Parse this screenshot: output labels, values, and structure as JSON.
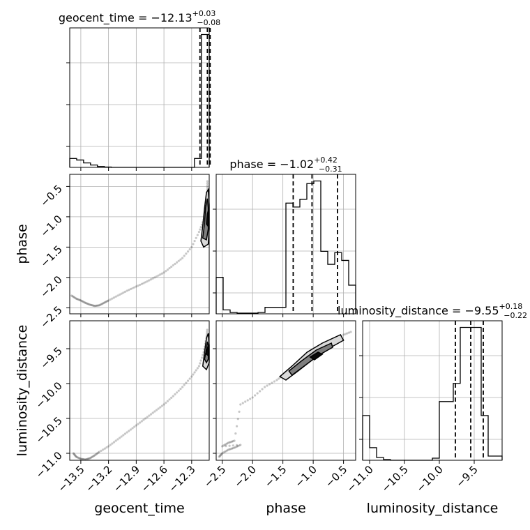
{
  "chart_data": {
    "type": "corner",
    "parameters": [
      {
        "name": "geocent_time",
        "label": "geocent_time",
        "title": {
          "prefix": "geocent_time = ",
          "median": "−12.13",
          "plus": "+0.03",
          "minus": "−0.08"
        },
        "range": [
          -13.62,
          -12.11
        ],
        "ticks": [
          -13.5,
          -13.2,
          -12.9,
          -12.6,
          -12.3
        ],
        "tick_labels": [
          "−13.5",
          "−13.2",
          "−12.9",
          "−12.6",
          "−12.3"
        ],
        "quantiles": [
          -12.21,
          -12.13,
          -12.1
        ],
        "hist": {
          "edges": [
            -13.62,
            -13.545,
            -13.47,
            -13.395,
            -13.32,
            -13.245,
            -13.17,
            -13.095,
            -13.02,
            -12.945,
            -12.87,
            -12.795,
            -12.72,
            -12.645,
            -12.57,
            -12.495,
            -12.42,
            -12.345,
            -12.27,
            -12.195,
            -12.11
          ],
          "counts": [
            0.03,
            0.025,
            0.015,
            0.008,
            0.003,
            0.001,
            0,
            0,
            0,
            0,
            0,
            0,
            0,
            0,
            0,
            0,
            0,
            0,
            0.03,
            0.45
          ]
        }
      },
      {
        "name": "phase",
        "label": "phase",
        "title": {
          "prefix": "phase = ",
          "median": "−1.02",
          "plus": "+0.42",
          "minus": "−0.31"
        },
        "range": [
          -2.6,
          -0.3
        ],
        "ticks": [
          -2.5,
          -2.0,
          -1.5,
          -1.0,
          -0.5
        ],
        "tick_labels": [
          "−2.5",
          "−2.0",
          "−1.5",
          "−1.0",
          "−0.5"
        ],
        "quantiles": [
          -1.33,
          -1.02,
          -0.6
        ],
        "hist": {
          "edges": [
            -2.6,
            -2.485,
            -2.37,
            -2.255,
            -2.14,
            -2.025,
            -1.91,
            -1.795,
            -1.68,
            -1.565,
            -1.45,
            -1.335,
            -1.22,
            -1.105,
            -0.99,
            -0.875,
            -0.76,
            -0.645,
            -0.53,
            -0.415,
            -0.3
          ],
          "counts": [
            0.28,
            0.03,
            0.01,
            0.005,
            0.005,
            0.005,
            0.01,
            0.05,
            0.05,
            0.05,
            0.85,
            0.82,
            0.88,
            1.0,
            1.02,
            0.48,
            0.38,
            0.47,
            0.41,
            0.22
          ]
        }
      },
      {
        "name": "luminosity_distance",
        "label": "luminosity_distance",
        "title": {
          "prefix": "luminosity_distance = ",
          "median": "−9.55",
          "plus": "+0.18",
          "minus": "−0.22"
        },
        "range": [
          -11.1,
          -9.1
        ],
        "ticks": [
          -11.0,
          -10.5,
          -10.0,
          -9.5
        ],
        "tick_labels": [
          "−11.0",
          "−10.5",
          "−10.0",
          "−9.5"
        ],
        "quantiles": [
          -9.77,
          -9.55,
          -9.37
        ],
        "hist": {
          "edges": [
            -11.1,
            -11.0,
            -10.9,
            -10.8,
            -10.7,
            -10.6,
            -10.5,
            -10.4,
            -10.3,
            -10.2,
            -10.1,
            -10.0,
            -9.9,
            -9.8,
            -9.7,
            -9.6,
            -9.5,
            -9.4,
            -9.3,
            -9.2,
            -9.1
          ],
          "counts": [
            0.32,
            0.09,
            0.02,
            0.005,
            0,
            0,
            0,
            0,
            0,
            0,
            0.015,
            0.42,
            0.42,
            0.55,
            0.95,
            0.95,
            0.95,
            0.32,
            0.03,
            0.03
          ]
        }
      }
    ],
    "scatter_2d": [
      {
        "x": "geocent_time",
        "y": "phase",
        "trail": [
          [
            -13.6,
            -2.3
          ],
          [
            -13.55,
            -2.35
          ],
          [
            -13.5,
            -2.38
          ],
          [
            -13.45,
            -2.42
          ],
          [
            -13.4,
            -2.45
          ],
          [
            -13.35,
            -2.47
          ],
          [
            -13.3,
            -2.46
          ],
          [
            -13.25,
            -2.42
          ],
          [
            -13.2,
            -2.38
          ],
          [
            -13.1,
            -2.3
          ],
          [
            -13.0,
            -2.22
          ],
          [
            -12.9,
            -2.15
          ],
          [
            -12.8,
            -2.08
          ],
          [
            -12.7,
            -2.0
          ],
          [
            -12.6,
            -1.92
          ],
          [
            -12.5,
            -1.8
          ],
          [
            -12.4,
            -1.68
          ],
          [
            -12.3,
            -1.5
          ],
          [
            -12.22,
            -1.25
          ],
          [
            -12.17,
            -1.05
          ],
          [
            -12.14,
            -0.8
          ],
          [
            -12.13,
            -0.55
          ],
          [
            -12.13,
            -0.38
          ]
        ],
        "contours": [
          {
            "level": "outer",
            "pts": [
              [
                -12.2,
                -1.4
              ],
              [
                -12.18,
                -1.15
              ],
              [
                -12.16,
                -0.85
              ],
              [
                -12.14,
                -0.6
              ],
              [
                -12.12,
                -0.55
              ],
              [
                -12.11,
                -0.8
              ],
              [
                -12.11,
                -1.2
              ],
              [
                -12.12,
                -1.45
              ],
              [
                -12.17,
                -1.5
              ]
            ]
          },
          {
            "level": "mid",
            "pts": [
              [
                -12.18,
                -1.35
              ],
              [
                -12.16,
                -1.1
              ],
              [
                -12.15,
                -0.85
              ],
              [
                -12.13,
                -0.7
              ],
              [
                -12.12,
                -0.85
              ],
              [
                -12.12,
                -1.2
              ],
              [
                -12.14,
                -1.38
              ]
            ]
          },
          {
            "level": "inner",
            "pts": [
              [
                -12.14,
                -1.12
              ],
              [
                -12.13,
                -0.95
              ],
              [
                -12.12,
                -0.9
              ],
              [
                -12.115,
                -1.05
              ],
              [
                -12.125,
                -1.15
              ]
            ]
          }
        ]
      },
      {
        "x": "geocent_time",
        "y": "luminosity_distance",
        "trail": [
          [
            -13.58,
            -11.0
          ],
          [
            -13.55,
            -11.05
          ],
          [
            -13.5,
            -11.08
          ],
          [
            -13.45,
            -11.09
          ],
          [
            -13.4,
            -11.07
          ],
          [
            -13.35,
            -11.03
          ],
          [
            -13.3,
            -10.98
          ],
          [
            -13.2,
            -10.9
          ],
          [
            -13.1,
            -10.8
          ],
          [
            -13.0,
            -10.7
          ],
          [
            -12.9,
            -10.6
          ],
          [
            -12.8,
            -10.5
          ],
          [
            -12.7,
            -10.4
          ],
          [
            -12.6,
            -10.3
          ],
          [
            -12.5,
            -10.18
          ],
          [
            -12.4,
            -10.05
          ],
          [
            -12.3,
            -9.9
          ],
          [
            -12.22,
            -9.75
          ],
          [
            -12.17,
            -9.55
          ],
          [
            -12.14,
            -9.35
          ],
          [
            -12.13,
            -9.2
          ]
        ],
        "contours": [
          {
            "level": "outer",
            "pts": [
              [
                -12.18,
                -9.75
              ],
              [
                -12.16,
                -9.55
              ],
              [
                -12.14,
                -9.35
              ],
              [
                -12.12,
                -9.28
              ],
              [
                -12.11,
                -9.45
              ],
              [
                -12.11,
                -9.7
              ],
              [
                -12.14,
                -9.8
              ]
            ]
          },
          {
            "level": "mid",
            "pts": [
              [
                -12.16,
                -9.65
              ],
              [
                -12.14,
                -9.5
              ],
              [
                -12.13,
                -9.4
              ],
              [
                -12.12,
                -9.45
              ],
              [
                -12.12,
                -9.65
              ],
              [
                -12.14,
                -9.7
              ]
            ]
          },
          {
            "level": "inner",
            "pts": [
              [
                -12.14,
                -9.58
              ],
              [
                -12.13,
                -9.48
              ],
              [
                -12.12,
                -9.5
              ],
              [
                -12.12,
                -9.6
              ]
            ]
          }
        ]
      },
      {
        "x": "phase",
        "y": "luminosity_distance",
        "trail": [
          [
            -2.55,
            -11.05
          ],
          [
            -2.5,
            -11.0
          ],
          [
            -2.4,
            -10.95
          ],
          [
            -2.3,
            -10.92
          ],
          [
            -2.2,
            -10.88
          ],
          [
            -2.5,
            -10.9
          ],
          [
            -2.4,
            -10.85
          ],
          [
            -2.3,
            -10.82
          ],
          [
            -2.2,
            -10.3
          ],
          [
            -2.0,
            -10.2
          ],
          [
            -1.8,
            -10.05
          ],
          [
            -1.6,
            -9.95
          ],
          [
            -1.45,
            -9.85
          ],
          [
            -1.3,
            -9.75
          ],
          [
            -1.1,
            -9.62
          ],
          [
            -0.9,
            -9.5
          ],
          [
            -0.7,
            -9.4
          ],
          [
            -0.5,
            -9.3
          ],
          [
            -0.35,
            -9.25
          ]
        ],
        "contours": [
          {
            "level": "outer",
            "pts": [
              [
                -1.55,
                -9.9
              ],
              [
                -1.35,
                -9.75
              ],
              [
                -1.1,
                -9.55
              ],
              [
                -0.85,
                -9.42
              ],
              [
                -0.55,
                -9.3
              ],
              [
                -0.5,
                -9.38
              ],
              [
                -0.75,
                -9.5
              ],
              [
                -1.0,
                -9.65
              ],
              [
                -1.25,
                -9.82
              ],
              [
                -1.45,
                -9.95
              ]
            ]
          },
          {
            "level": "mid",
            "pts": [
              [
                -1.4,
                -9.82
              ],
              [
                -1.2,
                -9.68
              ],
              [
                -0.95,
                -9.52
              ],
              [
                -0.7,
                -9.42
              ],
              [
                -0.68,
                -9.48
              ],
              [
                -0.92,
                -9.6
              ],
              [
                -1.15,
                -9.75
              ],
              [
                -1.35,
                -9.88
              ]
            ]
          },
          {
            "level": "inner",
            "pts": [
              [
                -1.05,
                -9.62
              ],
              [
                -0.92,
                -9.55
              ],
              [
                -0.85,
                -9.58
              ],
              [
                -0.98,
                -9.66
              ]
            ]
          }
        ]
      }
    ],
    "grid": true
  }
}
